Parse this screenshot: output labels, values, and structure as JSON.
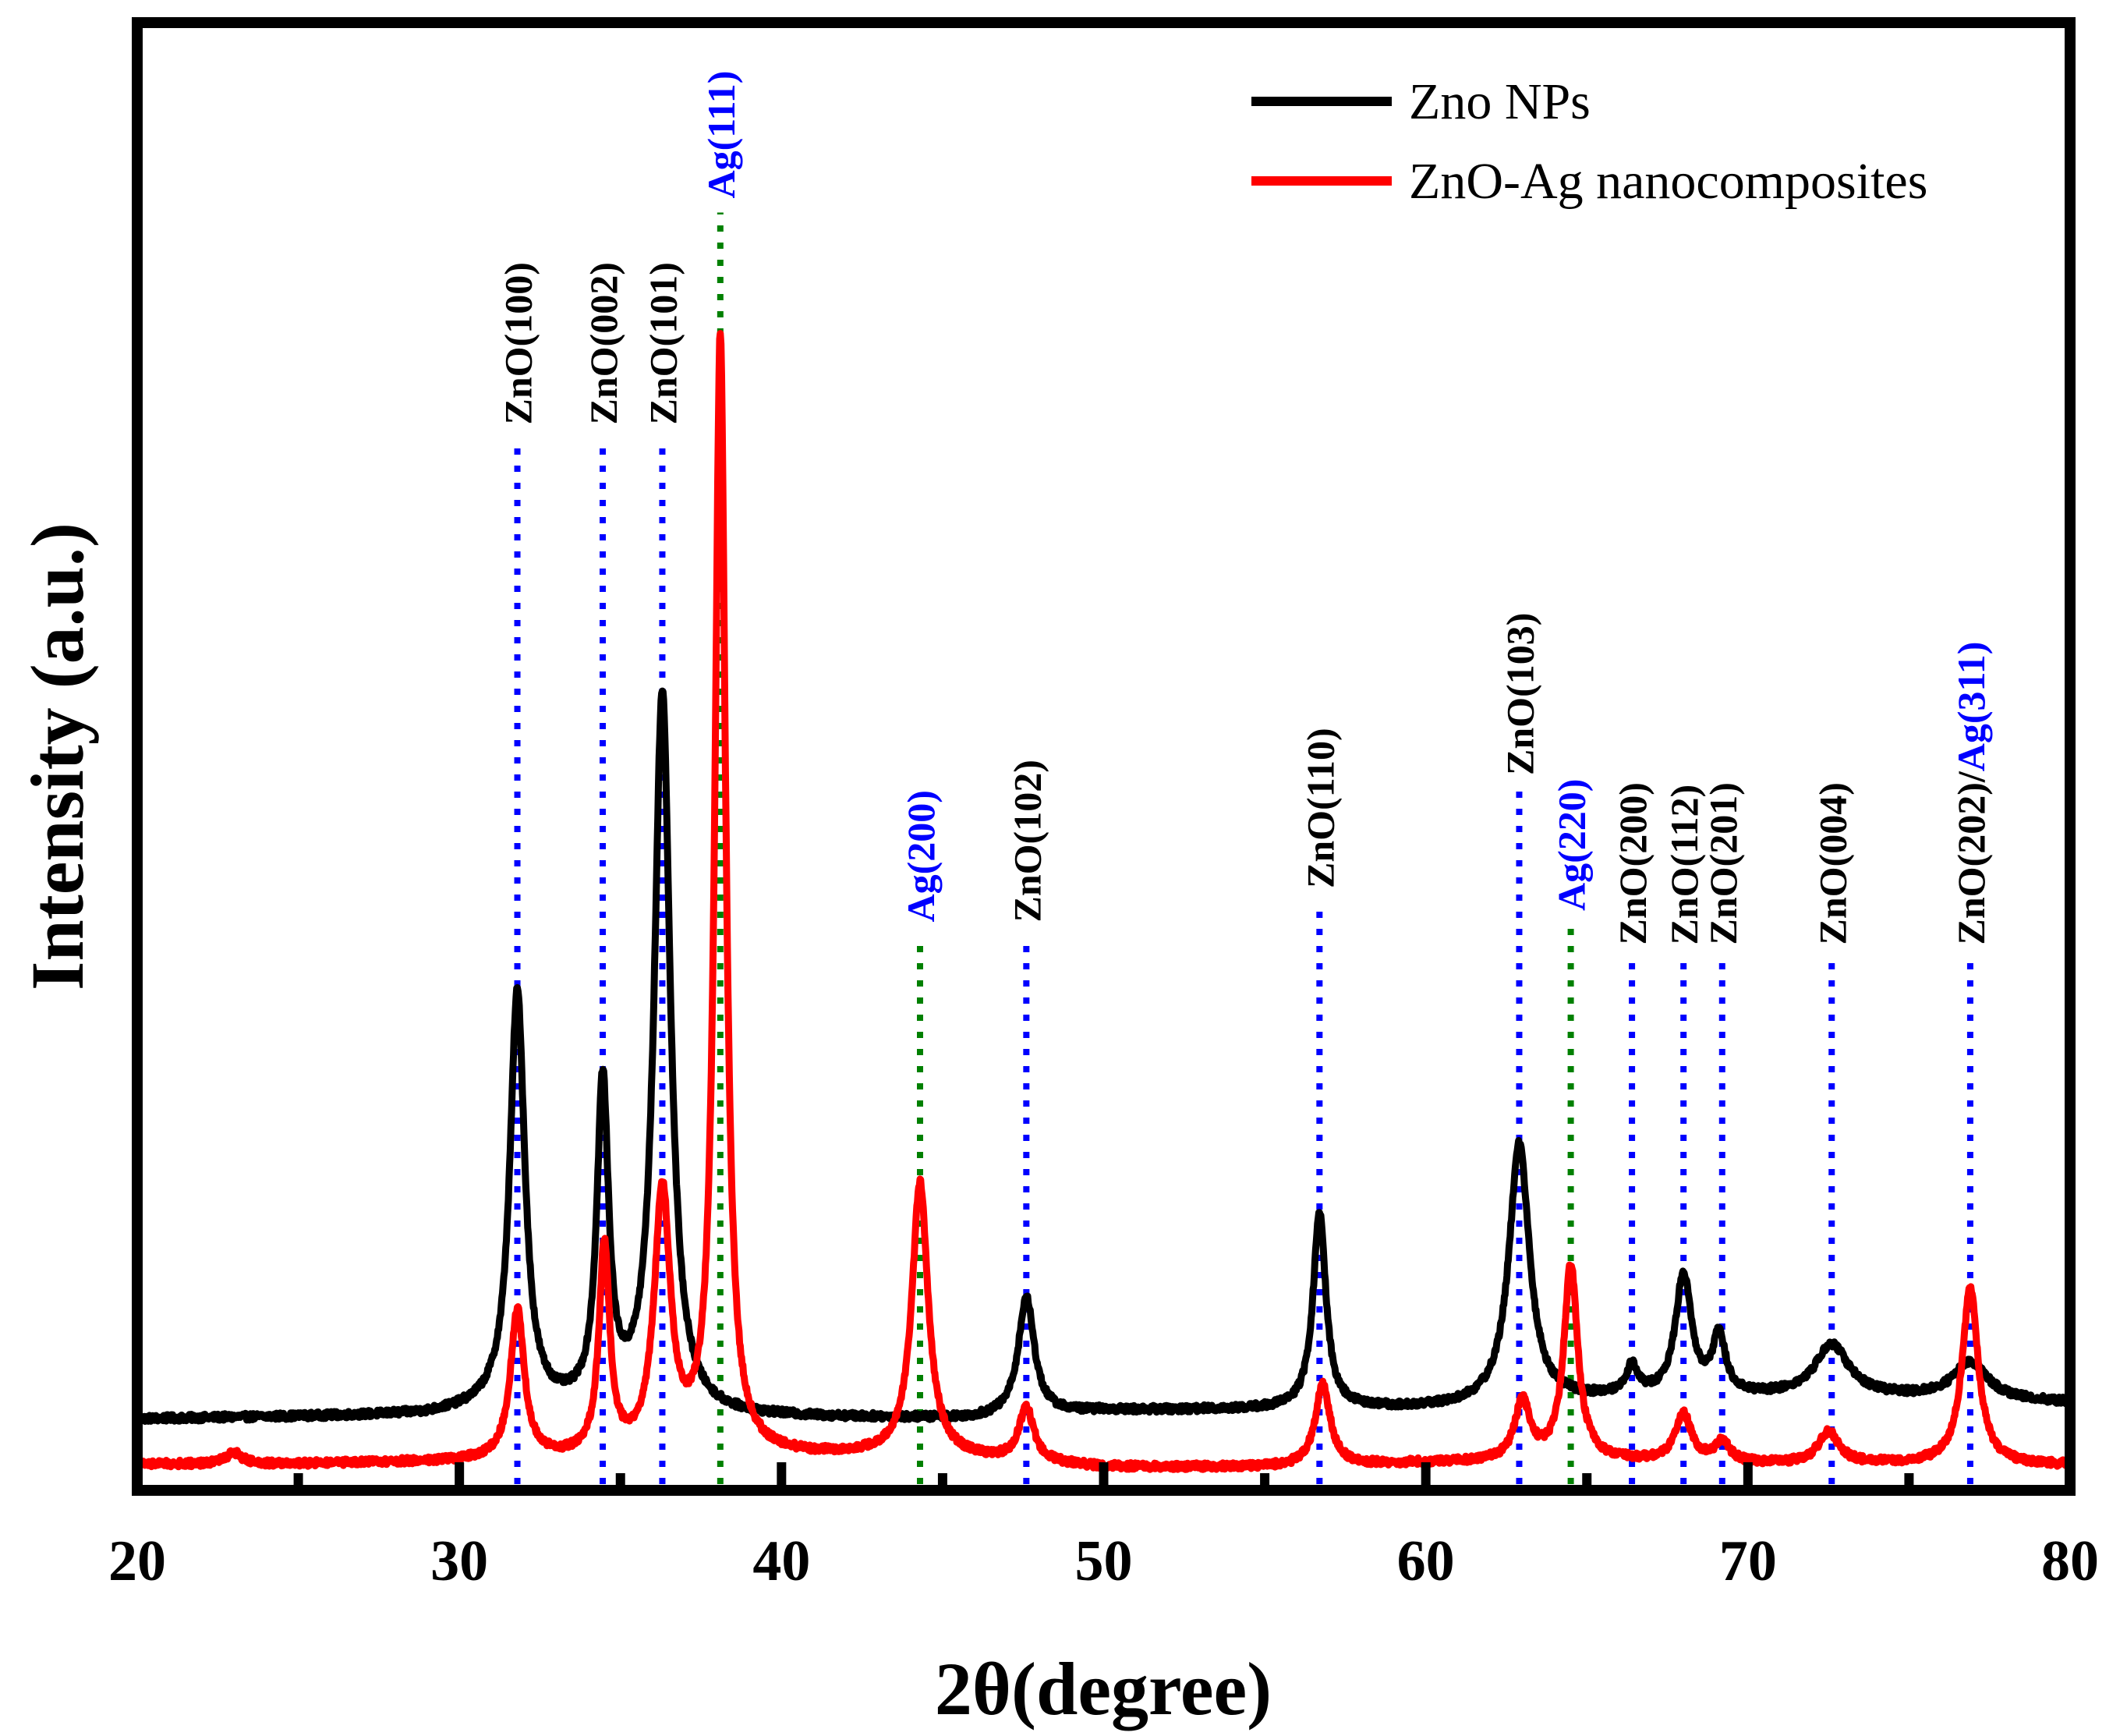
{
  "chart_data": {
    "type": "line",
    "title": "",
    "xlabel": "2θ(degree)",
    "ylabel": "Intensity (a.u.)",
    "xlim": [
      20,
      80
    ],
    "ylim": [
      0,
      1
    ],
    "y_ticks_labeled": false,
    "x_ticks": [
      20,
      30,
      40,
      50,
      60,
      70,
      80
    ],
    "x_tick_labels": [
      "20",
      "30",
      "40",
      "50",
      "60",
      "70",
      "80"
    ],
    "x_minor_ticks": [
      25,
      35,
      45,
      55,
      65,
      75
    ],
    "legend": {
      "position": "top-right"
    },
    "series": [
      {
        "name": "Zno NPs",
        "color": "#000000",
        "baseline": [
          [
            20,
            0.063
          ],
          [
            29,
            0.066
          ],
          [
            31,
            0.071
          ],
          [
            38,
            0.064
          ],
          [
            46,
            0.063
          ],
          [
            50,
            0.07
          ],
          [
            54,
            0.071
          ],
          [
            60,
            0.072
          ],
          [
            63,
            0.075
          ],
          [
            66,
            0.081
          ],
          [
            73,
            0.083
          ],
          [
            80,
            0.077
          ]
        ],
        "peaks": [
          {
            "pos": 31.8,
            "height": 0.368,
            "width": 0.28
          },
          {
            "pos": 34.45,
            "height": 0.285,
            "width": 0.22
          },
          {
            "pos": 36.3,
            "height": 0.638,
            "width": 0.3
          },
          {
            "pos": 47.6,
            "height": 0.104,
            "width": 0.3
          },
          {
            "pos": 56.7,
            "height": 0.173,
            "width": 0.24
          },
          {
            "pos": 62.9,
            "height": 0.232,
            "width": 0.38
          },
          {
            "pos": 66.4,
            "height": 0.025,
            "width": 0.22
          },
          {
            "pos": 68.0,
            "height": 0.107,
            "width": 0.3
          },
          {
            "pos": 69.1,
            "height": 0.05,
            "width": 0.25
          },
          {
            "pos": 72.6,
            "height": 0.045,
            "width": 0.62
          },
          {
            "pos": 76.9,
            "height": 0.033,
            "width": 0.65
          }
        ]
      },
      {
        "name": "ZnO-Ag nanocomposites",
        "color": "#ff0000",
        "baseline": [
          [
            20,
            0.023
          ],
          [
            25,
            0.023
          ],
          [
            30,
            0.025
          ],
          [
            36,
            0.028
          ],
          [
            44,
            0.03
          ],
          [
            50,
            0.02
          ],
          [
            55,
            0.02
          ],
          [
            58,
            0.022
          ],
          [
            60,
            0.024
          ],
          [
            65,
            0.026
          ],
          [
            70,
            0.023
          ],
          [
            75,
            0.023
          ],
          [
            80,
            0.022
          ]
        ],
        "peaks": [
          {
            "pos": 23.0,
            "height": 0.01,
            "width": 0.3
          },
          {
            "pos": 31.8,
            "height": 0.132,
            "width": 0.26
          },
          {
            "pos": 34.5,
            "height": 0.184,
            "width": 0.2
          },
          {
            "pos": 36.3,
            "height": 0.232,
            "width": 0.3
          },
          {
            "pos": 38.1,
            "height": 0.989,
            "width": 0.2
          },
          {
            "pos": 44.3,
            "height": 0.242,
            "width": 0.3
          },
          {
            "pos": 47.6,
            "height": 0.047,
            "width": 0.28
          },
          {
            "pos": 56.8,
            "height": 0.072,
            "width": 0.28
          },
          {
            "pos": 63.0,
            "height": 0.052,
            "width": 0.28
          },
          {
            "pos": 64.5,
            "height": 0.172,
            "width": 0.26
          },
          {
            "pos": 68.0,
            "height": 0.042,
            "width": 0.3
          },
          {
            "pos": 69.2,
            "height": 0.018,
            "width": 0.28
          },
          {
            "pos": 72.5,
            "height": 0.028,
            "width": 0.38
          },
          {
            "pos": 76.9,
            "height": 0.156,
            "width": 0.3
          }
        ]
      }
    ],
    "reference_lines": [
      {
        "pos": 31.8,
        "color": "#0000ff",
        "label": "ZnO(100)",
        "label_color": "#000000",
        "line_top": 0.93,
        "label_top": 1.03
      },
      {
        "pos": 34.45,
        "color": "#0000ff",
        "label": "ZnO(002)",
        "label_color": "#000000",
        "line_top": 0.93,
        "label_top": 1.03
      },
      {
        "pos": 36.3,
        "color": "#0000ff",
        "label": "ZnO(101)",
        "label_color": "#000000",
        "line_top": 0.93,
        "label_top": 1.03
      },
      {
        "pos": 38.1,
        "color": "#008000",
        "label": "Ag(111)",
        "label_color": "#0000ff",
        "line_top": 1.13,
        "label_top": 1.23
      },
      {
        "pos": 44.3,
        "color": "#008000",
        "label": "Ag(200)",
        "label_color": "#0000ff",
        "line_top": 0.49,
        "label_top": 0.62
      },
      {
        "pos": 47.6,
        "color": "#0000ff",
        "label": "ZnO(102)",
        "label_color": "#000000",
        "line_top": 0.49,
        "label_top": 0.66
      },
      {
        "pos": 56.7,
        "color": "#0000ff",
        "label": "ZnO(110)",
        "label_color": "#000000",
        "line_top": 0.52,
        "label_top": 0.71
      },
      {
        "pos": 62.9,
        "color": "#0000ff",
        "label": "ZnO(103)",
        "label_color": "#000000",
        "line_top": 0.62,
        "label_top": 0.81
      },
      {
        "pos": 64.5,
        "color": "#008000",
        "label": "Ag(220)",
        "label_color": "#0000ff",
        "line_top": 0.5,
        "label_top": 0.64
      },
      {
        "pos": 66.4,
        "color": "#0000ff",
        "label": "ZnO(200)",
        "label_color": "#000000",
        "line_top": 0.47,
        "label_top": 0.66
      },
      {
        "pos": 68.0,
        "color": "#0000ff",
        "label": "ZnO(112)",
        "label_color": "#000000",
        "line_top": 0.47,
        "label_top": 0.66
      },
      {
        "pos": 69.2,
        "color": "#0000ff",
        "label": "ZnO(201)",
        "label_color": "#000000",
        "line_top": 0.47,
        "label_top": 0.66
      },
      {
        "pos": 72.6,
        "color": "#0000ff",
        "label": "ZnO(004)",
        "label_color": "#000000",
        "line_top": 0.47,
        "label_top": 0.66
      },
      {
        "pos": 76.9,
        "color": "#0000ff",
        "label_parts": [
          {
            "text": "ZnO(202)/",
            "color": "#000000"
          },
          {
            "text": "Ag(311)",
            "color": "#0000ff"
          }
        ],
        "line_top": 0.47,
        "label_top": 0.83
      }
    ]
  }
}
